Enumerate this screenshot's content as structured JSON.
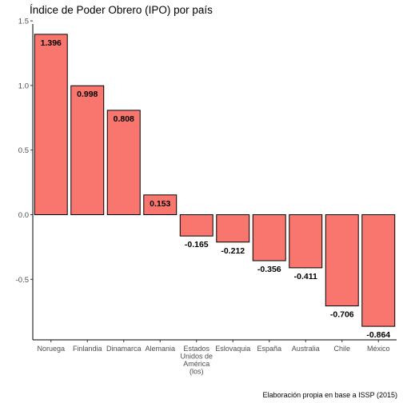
{
  "chart_data": {
    "type": "bar",
    "title": "Índice de Poder Obrero (IPO) por país",
    "caption": "Elaboración propia en base a ISSP (2015)",
    "xlabel": "",
    "ylabel": "",
    "ylim": [
      -0.95,
      1.5
    ],
    "y_ticks": [
      1.5,
      1.0,
      0.5,
      0.0,
      -0.5
    ],
    "y_tick_labels": [
      "1.5",
      "1.0",
      "0.5",
      "0.0",
      "-0.5"
    ],
    "grid": false,
    "categories": [
      [
        "Noruega"
      ],
      [
        "Finlandia"
      ],
      [
        "Dinamarca"
      ],
      [
        "Alemania"
      ],
      [
        "Estados",
        "Unidos de",
        "América",
        "(los)"
      ],
      [
        "Eslovaquia"
      ],
      [
        "España"
      ],
      [
        "Australia"
      ],
      [
        "Chile"
      ],
      [
        "México"
      ]
    ],
    "values": [
      1.396,
      0.998,
      0.808,
      0.153,
      -0.165,
      -0.212,
      -0.356,
      -0.411,
      -0.706,
      -0.864
    ],
    "data_labels": [
      "1.396",
      "0.998",
      "0.808",
      "0.153",
      "-0.165",
      "-0.212",
      "-0.356",
      "-0.411",
      "-0.706",
      "-0.864"
    ],
    "bar_color": "#F8766D",
    "bar_outline": "#000000"
  }
}
